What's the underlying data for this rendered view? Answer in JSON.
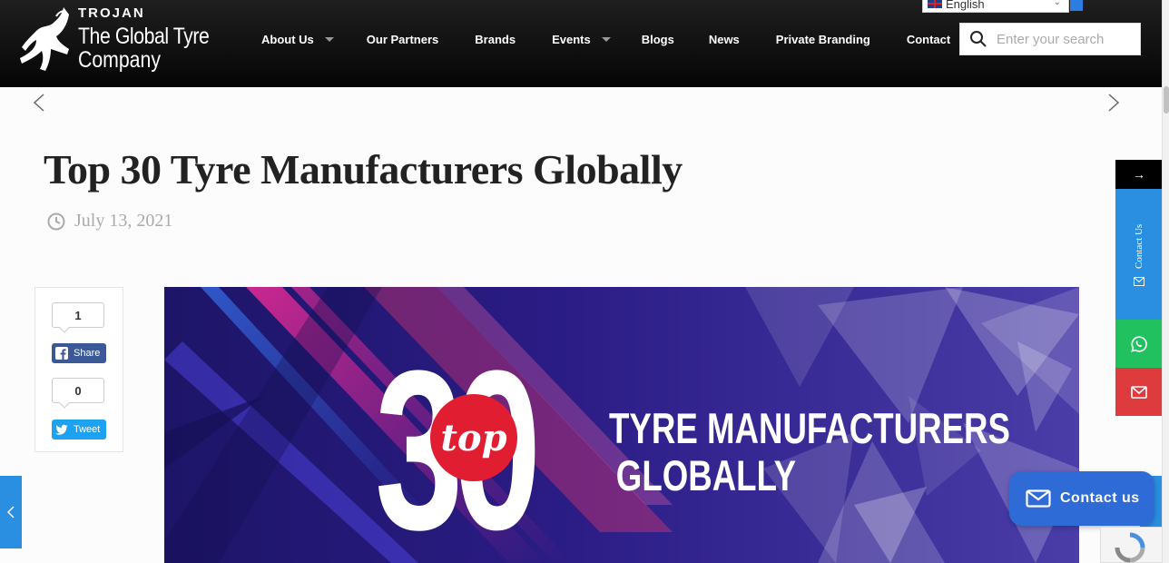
{
  "header": {
    "logo": {
      "brand": "TROJAN",
      "line1": "The Global Tyre",
      "line2": "Company"
    },
    "nav": [
      {
        "label": "About Us",
        "has_dropdown": true
      },
      {
        "label": "Our Partners",
        "has_dropdown": false
      },
      {
        "label": "Brands",
        "has_dropdown": false
      },
      {
        "label": "Events",
        "has_dropdown": true
      },
      {
        "label": "Blogs",
        "has_dropdown": false
      },
      {
        "label": "News",
        "has_dropdown": false
      },
      {
        "label": "Private Branding",
        "has_dropdown": false
      },
      {
        "label": "Contact",
        "has_dropdown": false
      }
    ],
    "language": {
      "selected": "English"
    },
    "search": {
      "placeholder": "Enter your search",
      "icon": "search-icon"
    }
  },
  "post": {
    "title": "Top 30 Tyre Manufacturers Globally",
    "date": "July 13, 2021"
  },
  "share": {
    "facebook": {
      "count": "1",
      "label": "Share"
    },
    "twitter": {
      "count": "0",
      "label": "Tweet"
    }
  },
  "hero": {
    "number": "30",
    "badge": "top",
    "line1": "TYRE MANUFACTURERS",
    "line2": "GLOBALLY"
  },
  "side_widget": {
    "arrow": "→",
    "contact_label": "Contact Us"
  },
  "contact_fab": {
    "label": "Contact us"
  },
  "colors": {
    "header_bg": "#0b0b0b",
    "accent_blue": "#2a8fe0",
    "whatsapp_green": "#21c160",
    "mail_red": "#de3b3f",
    "fab_blue": "#2e6bd6",
    "hero_bg": "#251c7a",
    "badge_red": "#e11d32"
  }
}
